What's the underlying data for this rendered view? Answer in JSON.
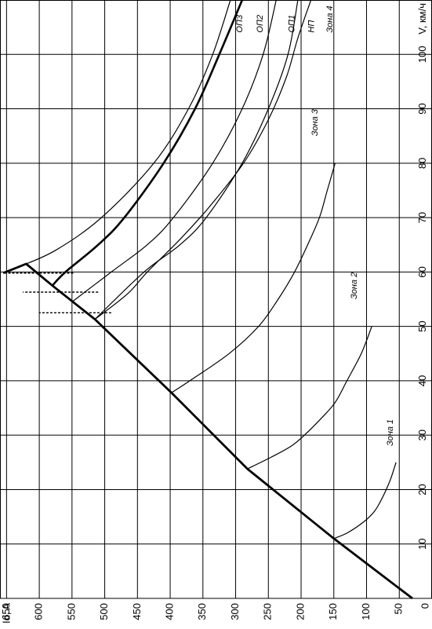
{
  "chart_data": {
    "type": "line",
    "orientation": "rotated-90-ccw",
    "xlabel": "V, км/ч",
    "ylabel": "Id, A",
    "xlim": [
      0,
      110
    ],
    "ylim": [
      0,
      660
    ],
    "x_ticks": [
      10,
      20,
      30,
      40,
      50,
      60,
      70,
      80,
      90,
      100
    ],
    "y_ticks": [
      50,
      100,
      150,
      200,
      250,
      300,
      350,
      400,
      450,
      500,
      550,
      600,
      650
    ],
    "origin_label": "0",
    "grid": true,
    "series": [
      {
        "name": "ОП3",
        "points": [
          [
            59.8,
            655
          ],
          [
            61,
            630
          ],
          [
            64,
            575
          ],
          [
            70,
            505
          ],
          [
            80,
            425
          ],
          [
            90,
            372
          ],
          [
            100,
            335
          ],
          [
            110,
            308
          ]
        ]
      },
      {
        "name": "ОП2",
        "points": [
          [
            57.5,
            580
          ],
          [
            60,
            560
          ],
          [
            65,
            510
          ],
          [
            70,
            470
          ],
          [
            80,
            410
          ],
          [
            90,
            362
          ],
          [
            100,
            325
          ],
          [
            110,
            290
          ]
        ]
      },
      {
        "name": "ОП1",
        "points": [
          [
            54.5,
            550
          ],
          [
            60,
            490
          ],
          [
            65,
            435
          ],
          [
            70,
            395
          ],
          [
            80,
            335
          ],
          [
            90,
            290
          ],
          [
            100,
            258
          ],
          [
            110,
            238
          ]
        ]
      },
      {
        "name": "НП",
        "points": [
          [
            51.3,
            515
          ],
          [
            60,
            440
          ],
          [
            65,
            385
          ],
          [
            70,
            345
          ],
          [
            80,
            290
          ],
          [
            90,
            250
          ],
          [
            100,
            220
          ],
          [
            110,
            205
          ]
        ]
      },
      {
        "name": "Зона 4",
        "points": [
          [
            51.3,
            515
          ],
          [
            56,
            465
          ],
          [
            60,
            435
          ],
          [
            66,
            385
          ],
          [
            72,
            340
          ],
          [
            80,
            288
          ],
          [
            88,
            250
          ],
          [
            96,
            222
          ],
          [
            103,
            205
          ],
          [
            110,
            185
          ]
        ]
      },
      {
        "name": "Зона 3",
        "points": [
          [
            37.8,
            398
          ],
          [
            40,
            370
          ],
          [
            45,
            310
          ],
          [
            50,
            265
          ],
          [
            55,
            235
          ],
          [
            60,
            210
          ],
          [
            65,
            190
          ],
          [
            70,
            172
          ],
          [
            75,
            160
          ],
          [
            80,
            148
          ]
        ]
      },
      {
        "name": "Зона 2",
        "points": [
          [
            23.8,
            282
          ],
          [
            26,
            245
          ],
          [
            28,
            215
          ],
          [
            30,
            195
          ],
          [
            33,
            170
          ],
          [
            36,
            148
          ],
          [
            40,
            130
          ],
          [
            45,
            108
          ],
          [
            50,
            92
          ]
        ]
      },
      {
        "name": "Зона 1",
        "points": [
          [
            11,
            150
          ],
          [
            12,
            130
          ],
          [
            14,
            105
          ],
          [
            16,
            88
          ],
          [
            18,
            78
          ],
          [
            20,
            70
          ],
          [
            22,
            63
          ],
          [
            25,
            55
          ]
        ]
      }
    ],
    "limit_line": {
      "points": [
        [
          0,
          30
        ],
        [
          11,
          150
        ],
        [
          23.8,
          282
        ],
        [
          37.8,
          398
        ],
        [
          51.3,
          515
        ],
        [
          57.5,
          580
        ],
        [
          61.5,
          620
        ],
        [
          59.8,
          655
        ]
      ]
    },
    "limit_markers": [
      {
        "x": [
          52.5,
          52.5
        ],
        "y": [
          490,
          600
        ]
      },
      {
        "x": [
          56.3,
          56.3
        ],
        "y": [
          510,
          625
        ]
      },
      {
        "x": [
          59.8,
          59.8
        ],
        "y": [
          548,
          652
        ]
      }
    ],
    "curve_labels": [
      "ОП3",
      "ОП2",
      "ОП1",
      "НП",
      "Зона 4",
      "Зона 3",
      "Зона 2",
      "Зона 1"
    ]
  }
}
